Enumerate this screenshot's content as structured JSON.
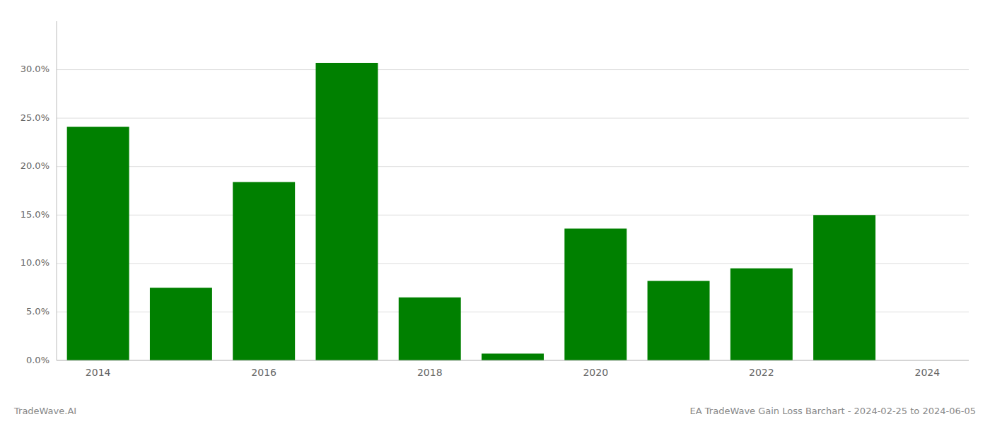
{
  "chart_data": {
    "type": "bar",
    "categories": [
      "2014",
      null,
      "2016",
      null,
      "2018",
      null,
      "2020",
      null,
      "2022",
      null,
      "2024"
    ],
    "values": [
      0.241,
      0.075,
      0.184,
      0.307,
      0.065,
      0.007,
      0.136,
      0.082,
      0.095,
      0.15,
      null
    ],
    "color": "#008000",
    "ylim": [
      0,
      0.35
    ],
    "yticks": [
      {
        "value": 0.0,
        "label": "0.0%"
      },
      {
        "value": 0.05,
        "label": "5.0%"
      },
      {
        "value": 0.1,
        "label": "10.0%"
      },
      {
        "value": 0.15,
        "label": "15.0%"
      },
      {
        "value": 0.2,
        "label": "20.0%"
      },
      {
        "value": 0.25,
        "label": "25.0%"
      },
      {
        "value": 0.3,
        "label": "30.0%"
      }
    ],
    "grid": true,
    "annotations": [
      "TradeWave.AI",
      "EA TradeWave Gain Loss Barchart - 2024-02-25 to 2024-06-05"
    ]
  }
}
